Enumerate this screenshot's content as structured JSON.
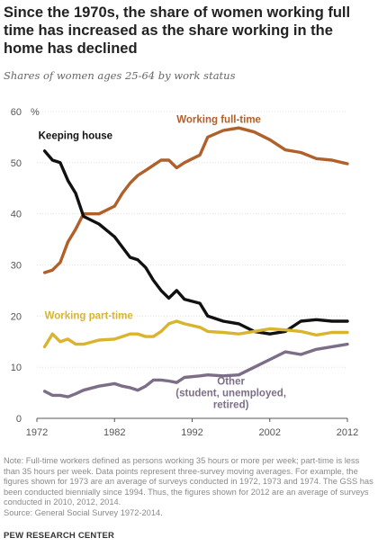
{
  "title": "Since the 1970s, the share of women working full time has increased as the share working in the home has declined",
  "subtitle": "Shares of women ages 25-64 by work status",
  "notes": [
    "Note: Full-time workers defined as persons working 35 hours or more per week; part-time is less than 35 hours per week.  Data points represent three-survey moving averages. For example, the figures shown for 1973 are an average of surveys conducted in 1972, 1973 and 1974. The GSS has been conducted biennially since 1994. Thus, the figures shown for 2012 are an average of surveys conducted in 2010, 2012, 2014.",
    "Source: General Social Survey 1972-2014."
  ],
  "brand": "PEW RESEARCH CENTER",
  "chart_data": {
    "type": "line",
    "unit_label": "%",
    "xlim": [
      1972,
      2012
    ],
    "ylim": [
      0,
      60
    ],
    "x_ticks": [
      1972,
      1982,
      1992,
      2002,
      2012
    ],
    "y_ticks": [
      0,
      10,
      20,
      30,
      40,
      50,
      60
    ],
    "grid": true,
    "series": [
      {
        "name": "Working full-time",
        "color": "#B0602A",
        "x": [
          1973,
          1974,
          1975,
          1976,
          1977,
          1978,
          1980,
          1982,
          1983,
          1984,
          1985,
          1986,
          1987,
          1988,
          1989,
          1990,
          1991,
          1993,
          1994,
          1996,
          1998,
          2000,
          2002,
          2004,
          2006,
          2008,
          2010,
          2012
        ],
        "y": [
          28.5,
          29.0,
          30.5,
          34.5,
          37.0,
          40.0,
          40.0,
          41.5,
          44.0,
          46.0,
          47.5,
          48.5,
          49.5,
          50.5,
          50.5,
          49.0,
          50.0,
          51.5,
          55.0,
          56.3,
          56.8,
          56.0,
          54.5,
          52.5,
          52.0,
          50.8,
          50.5,
          49.8
        ]
      },
      {
        "name": "Keeping house",
        "color": "#111111",
        "x": [
          1973,
          1974,
          1975,
          1976,
          1977,
          1978,
          1980,
          1982,
          1983,
          1984,
          1985,
          1986,
          1987,
          1988,
          1989,
          1990,
          1991,
          1993,
          1994,
          1996,
          1998,
          2000,
          2002,
          2004,
          2006,
          2008,
          2010,
          2012
        ],
        "y": [
          52.3,
          50.5,
          50.0,
          46.5,
          44.0,
          39.5,
          38.0,
          35.5,
          33.5,
          31.5,
          31.0,
          29.5,
          27.0,
          25.0,
          23.5,
          25.0,
          23.3,
          22.5,
          20.0,
          19.0,
          18.5,
          17.0,
          16.5,
          17.0,
          19.0,
          19.3,
          19.0,
          19.0
        ]
      },
      {
        "name": "Working part-time",
        "color": "#D9B42E",
        "x": [
          1973,
          1974,
          1975,
          1976,
          1977,
          1978,
          1980,
          1982,
          1983,
          1984,
          1985,
          1986,
          1987,
          1988,
          1989,
          1990,
          1991,
          1993,
          1994,
          1996,
          1998,
          2000,
          2002,
          2004,
          2006,
          2008,
          2010,
          2012
        ],
        "y": [
          14.0,
          16.5,
          15.0,
          15.5,
          14.5,
          14.5,
          15.3,
          15.5,
          16.0,
          16.5,
          16.5,
          16.0,
          16.0,
          17.0,
          18.5,
          19.0,
          18.5,
          17.8,
          17.0,
          16.8,
          16.5,
          17.0,
          17.5,
          17.3,
          17.0,
          16.3,
          16.8,
          16.8
        ]
      },
      {
        "name": "Other",
        "label_lines": [
          "(student, unemployed,",
          "retired)"
        ],
        "color": "#7D6E87",
        "x": [
          1973,
          1974,
          1975,
          1976,
          1977,
          1978,
          1980,
          1982,
          1983,
          1984,
          1985,
          1986,
          1987,
          1988,
          1989,
          1990,
          1991,
          1993,
          1994,
          1996,
          1998,
          2000,
          2002,
          2004,
          2006,
          2008,
          2010,
          2012
        ],
        "y": [
          5.3,
          4.5,
          4.5,
          4.2,
          4.8,
          5.5,
          6.3,
          6.8,
          6.3,
          6.0,
          5.5,
          6.3,
          7.5,
          7.5,
          7.3,
          7.0,
          8.0,
          8.3,
          8.5,
          8.3,
          8.5,
          10.0,
          11.5,
          13.0,
          12.5,
          13.5,
          14.0,
          14.5
        ]
      }
    ]
  }
}
